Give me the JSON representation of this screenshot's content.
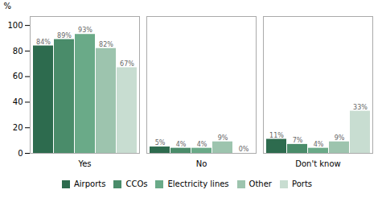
{
  "chart_data": {
    "type": "bar",
    "categories": [
      "Yes",
      "No",
      "Don't know"
    ],
    "series": [
      {
        "name": "Airports",
        "color": "#2d6b4e",
        "values": [
          84,
          5,
          11
        ],
        "value_labels": [
          "84%",
          "5%",
          "11%"
        ]
      },
      {
        "name": "CCOs",
        "color": "#4a8c6a",
        "values": [
          89,
          4,
          7
        ],
        "value_labels": [
          "89%",
          "4%",
          "7%"
        ]
      },
      {
        "name": "Electricity lines",
        "color": "#6aaa88",
        "values": [
          93,
          4,
          4
        ],
        "value_labels": [
          "93%",
          "4%",
          "4%"
        ]
      },
      {
        "name": "Other",
        "color": "#9dc4ae",
        "values": [
          82,
          9,
          9
        ],
        "value_labels": [
          "82%",
          "9%",
          "9%"
        ]
      },
      {
        "name": "Ports",
        "color": "#c8ddd1",
        "values": [
          67,
          0,
          33
        ],
        "value_labels": [
          "67%",
          "0%",
          "33%"
        ]
      }
    ],
    "ylabel": "%",
    "ylim": [
      0,
      107
    ],
    "yticks": [
      0,
      20,
      40,
      60,
      80,
      100
    ],
    "grid": false,
    "legend": "bottom",
    "data_labels": true
  }
}
